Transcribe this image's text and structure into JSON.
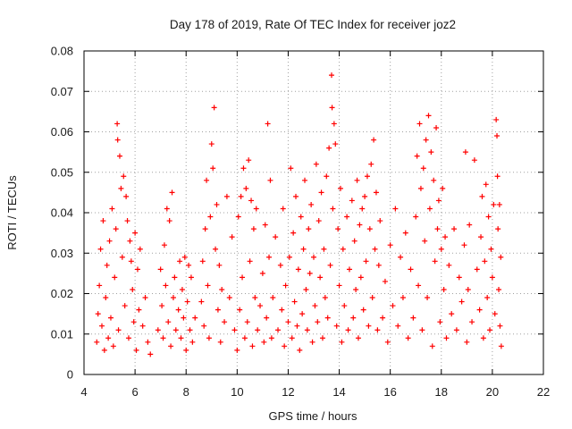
{
  "chart_data": {
    "type": "scatter",
    "title": "Day 178 of 2019, Rate Of TEC Index for receiver joz2",
    "xlabel": "GPS time / hours",
    "ylabel": "ROTI / TECUs",
    "xlim": [
      4,
      22
    ],
    "ylim": [
      0,
      0.08
    ],
    "xticks": [
      4,
      6,
      8,
      10,
      12,
      14,
      16,
      18,
      20,
      22
    ],
    "yticks": [
      0,
      0.01,
      0.02,
      0.03,
      0.04,
      0.05,
      0.06,
      0.07,
      0.08
    ],
    "xtick_labels": [
      "4",
      "6",
      "8",
      "10",
      "12",
      "14",
      "16",
      "18",
      "20",
      "22"
    ],
    "ytick_labels": [
      "0",
      "0.01",
      "0.02",
      "0.03",
      "0.04",
      "0.05",
      "0.06",
      "0.07",
      "0.08"
    ],
    "grid": true,
    "marker": "+",
    "color": "#ff0000",
    "series": [
      {
        "name": "ROTI",
        "points": [
          [
            4.5,
            0.008
          ],
          [
            4.55,
            0.015
          ],
          [
            4.6,
            0.022
          ],
          [
            4.65,
            0.031
          ],
          [
            4.7,
            0.012
          ],
          [
            4.75,
            0.038
          ],
          [
            4.8,
            0.006
          ],
          [
            4.85,
            0.019
          ],
          [
            4.9,
            0.027
          ],
          [
            4.95,
            0.009
          ],
          [
            5.0,
            0.033
          ],
          [
            5.05,
            0.014
          ],
          [
            5.1,
            0.041
          ],
          [
            5.15,
            0.007
          ],
          [
            5.2,
            0.024
          ],
          [
            5.25,
            0.036
          ],
          [
            5.3,
            0.062
          ],
          [
            5.32,
            0.058
          ],
          [
            5.35,
            0.011
          ],
          [
            5.4,
            0.054
          ],
          [
            5.45,
            0.046
          ],
          [
            5.5,
            0.029
          ],
          [
            5.55,
            0.049
          ],
          [
            5.6,
            0.017
          ],
          [
            5.65,
            0.044
          ],
          [
            5.7,
            0.038
          ],
          [
            5.75,
            0.009
          ],
          [
            5.8,
            0.033
          ],
          [
            5.85,
            0.028
          ],
          [
            5.9,
            0.021
          ],
          [
            5.95,
            0.013
          ],
          [
            6.0,
            0.035
          ],
          [
            6.05,
            0.006
          ],
          [
            6.1,
            0.026
          ],
          [
            6.15,
            0.016
          ],
          [
            6.2,
            0.031
          ],
          [
            6.3,
            0.012
          ],
          [
            6.4,
            0.019
          ],
          [
            6.5,
            0.008
          ],
          [
            6.6,
            0.005
          ],
          [
            6.9,
            0.011
          ],
          [
            7.0,
            0.026
          ],
          [
            7.05,
            0.017
          ],
          [
            7.1,
            0.009
          ],
          [
            7.15,
            0.032
          ],
          [
            7.2,
            0.022
          ],
          [
            7.25,
            0.041
          ],
          [
            7.3,
            0.013
          ],
          [
            7.35,
            0.038
          ],
          [
            7.4,
            0.007
          ],
          [
            7.45,
            0.045
          ],
          [
            7.5,
            0.019
          ],
          [
            7.55,
            0.024
          ],
          [
            7.6,
            0.011
          ],
          [
            7.7,
            0.016
          ],
          [
            7.75,
            0.028
          ],
          [
            7.8,
            0.009
          ],
          [
            7.85,
            0.021
          ],
          [
            7.9,
            0.014
          ],
          [
            7.95,
            0.029
          ],
          [
            8.0,
            0.006
          ],
          [
            8.05,
            0.018
          ],
          [
            8.1,
            0.027
          ],
          [
            8.15,
            0.011
          ],
          [
            8.2,
            0.024
          ],
          [
            8.25,
            0.008
          ],
          [
            8.35,
            0.014
          ],
          [
            8.6,
            0.018
          ],
          [
            8.65,
            0.028
          ],
          [
            8.7,
            0.012
          ],
          [
            8.75,
            0.036
          ],
          [
            8.8,
            0.048
          ],
          [
            8.85,
            0.022
          ],
          [
            8.9,
            0.009
          ],
          [
            8.95,
            0.039
          ],
          [
            9.0,
            0.057
          ],
          [
            9.05,
            0.051
          ],
          [
            9.1,
            0.066
          ],
          [
            9.15,
            0.031
          ],
          [
            9.2,
            0.042
          ],
          [
            9.25,
            0.016
          ],
          [
            9.3,
            0.027
          ],
          [
            9.35,
            0.008
          ],
          [
            9.4,
            0.021
          ],
          [
            9.5,
            0.013
          ],
          [
            9.6,
            0.044
          ],
          [
            9.7,
            0.019
          ],
          [
            9.8,
            0.034
          ],
          [
            9.9,
            0.011
          ],
          [
            10.0,
            0.006
          ],
          [
            10.05,
            0.039
          ],
          [
            10.1,
            0.016
          ],
          [
            10.15,
            0.044
          ],
          [
            10.2,
            0.024
          ],
          [
            10.25,
            0.051
          ],
          [
            10.3,
            0.009
          ],
          [
            10.35,
            0.046
          ],
          [
            10.4,
            0.013
          ],
          [
            10.45,
            0.053
          ],
          [
            10.5,
            0.028
          ],
          [
            10.55,
            0.043
          ],
          [
            10.6,
            0.007
          ],
          [
            10.65,
            0.036
          ],
          [
            10.7,
            0.019
          ],
          [
            10.75,
            0.041
          ],
          [
            10.8,
            0.011
          ],
          [
            10.9,
            0.017
          ],
          [
            11.0,
            0.025
          ],
          [
            11.05,
            0.008
          ],
          [
            11.1,
            0.037
          ],
          [
            11.15,
            0.014
          ],
          [
            11.2,
            0.062
          ],
          [
            11.25,
            0.029
          ],
          [
            11.3,
            0.048
          ],
          [
            11.35,
            0.009
          ],
          [
            11.4,
            0.019
          ],
          [
            11.5,
            0.034
          ],
          [
            11.6,
            0.011
          ],
          [
            11.7,
            0.027
          ],
          [
            11.75,
            0.016
          ],
          [
            11.8,
            0.041
          ],
          [
            11.85,
            0.007
          ],
          [
            11.9,
            0.022
          ],
          [
            12.0,
            0.013
          ],
          [
            12.05,
            0.029
          ],
          [
            12.1,
            0.051
          ],
          [
            12.15,
            0.009
          ],
          [
            12.2,
            0.035
          ],
          [
            12.25,
            0.018
          ],
          [
            12.3,
            0.044
          ],
          [
            12.35,
            0.012
          ],
          [
            12.4,
            0.026
          ],
          [
            12.45,
            0.006
          ],
          [
            12.5,
            0.039
          ],
          [
            12.55,
            0.015
          ],
          [
            12.6,
            0.031
          ],
          [
            12.65,
            0.048
          ],
          [
            12.7,
            0.021
          ],
          [
            12.75,
            0.011
          ],
          [
            12.8,
            0.036
          ],
          [
            12.85,
            0.025
          ],
          [
            12.9,
            0.042
          ],
          [
            12.95,
            0.008
          ],
          [
            13.0,
            0.029
          ],
          [
            13.05,
            0.017
          ],
          [
            13.1,
            0.052
          ],
          [
            13.15,
            0.013
          ],
          [
            13.2,
            0.038
          ],
          [
            13.25,
            0.024
          ],
          [
            13.3,
            0.045
          ],
          [
            13.35,
            0.009
          ],
          [
            13.4,
            0.031
          ],
          [
            13.45,
            0.019
          ],
          [
            13.5,
            0.049
          ],
          [
            13.55,
            0.014
          ],
          [
            13.6,
            0.056
          ],
          [
            13.65,
            0.027
          ],
          [
            13.7,
            0.074
          ],
          [
            13.72,
            0.066
          ],
          [
            13.75,
            0.041
          ],
          [
            13.8,
            0.062
          ],
          [
            13.85,
            0.057
          ],
          [
            13.9,
            0.012
          ],
          [
            13.95,
            0.036
          ],
          [
            14.0,
            0.022
          ],
          [
            14.05,
            0.046
          ],
          [
            14.1,
            0.008
          ],
          [
            14.15,
            0.031
          ],
          [
            14.2,
            0.017
          ],
          [
            14.3,
            0.039
          ],
          [
            14.35,
            0.011
          ],
          [
            14.4,
            0.026
          ],
          [
            14.5,
            0.043
          ],
          [
            14.55,
            0.014
          ],
          [
            14.6,
            0.033
          ],
          [
            14.65,
            0.021
          ],
          [
            14.7,
            0.048
          ],
          [
            14.75,
            0.009
          ],
          [
            14.8,
            0.037
          ],
          [
            14.85,
            0.024
          ],
          [
            14.9,
            0.041
          ],
          [
            14.95,
            0.016
          ],
          [
            15.0,
            0.044
          ],
          [
            15.05,
            0.028
          ],
          [
            15.1,
            0.049
          ],
          [
            15.15,
            0.012
          ],
          [
            15.2,
            0.036
          ],
          [
            15.25,
            0.052
          ],
          [
            15.3,
            0.019
          ],
          [
            15.35,
            0.058
          ],
          [
            15.4,
            0.031
          ],
          [
            15.45,
            0.045
          ],
          [
            15.5,
            0.011
          ],
          [
            15.55,
            0.027
          ],
          [
            15.6,
            0.038
          ],
          [
            15.7,
            0.014
          ],
          [
            15.8,
            0.023
          ],
          [
            15.9,
            0.008
          ],
          [
            16.0,
            0.032
          ],
          [
            16.1,
            0.017
          ],
          [
            16.2,
            0.041
          ],
          [
            16.3,
            0.012
          ],
          [
            16.4,
            0.029
          ],
          [
            16.5,
            0.019
          ],
          [
            16.6,
            0.035
          ],
          [
            16.7,
            0.009
          ],
          [
            16.8,
            0.026
          ],
          [
            16.9,
            0.014
          ],
          [
            17.0,
            0.039
          ],
          [
            17.05,
            0.054
          ],
          [
            17.1,
            0.022
          ],
          [
            17.15,
            0.062
          ],
          [
            17.2,
            0.046
          ],
          [
            17.25,
            0.011
          ],
          [
            17.3,
            0.051
          ],
          [
            17.35,
            0.033
          ],
          [
            17.4,
            0.058
          ],
          [
            17.45,
            0.019
          ],
          [
            17.5,
            0.064
          ],
          [
            17.55,
            0.041
          ],
          [
            17.6,
            0.055
          ],
          [
            17.65,
            0.007
          ],
          [
            17.7,
            0.048
          ],
          [
            17.75,
            0.028
          ],
          [
            17.8,
            0.061
          ],
          [
            17.85,
            0.036
          ],
          [
            17.9,
            0.043
          ],
          [
            17.95,
            0.013
          ],
          [
            18.0,
            0.031
          ],
          [
            18.05,
            0.046
          ],
          [
            18.1,
            0.021
          ],
          [
            18.15,
            0.034
          ],
          [
            18.2,
            0.009
          ],
          [
            18.3,
            0.027
          ],
          [
            18.4,
            0.015
          ],
          [
            18.5,
            0.036
          ],
          [
            18.6,
            0.011
          ],
          [
            18.7,
            0.024
          ],
          [
            18.8,
            0.018
          ],
          [
            18.9,
            0.032
          ],
          [
            18.95,
            0.055
          ],
          [
            19.0,
            0.008
          ],
          [
            19.05,
            0.021
          ],
          [
            19.1,
            0.037
          ],
          [
            19.2,
            0.013
          ],
          [
            19.3,
            0.053
          ],
          [
            19.4,
            0.026
          ],
          [
            19.5,
            0.016
          ],
          [
            19.55,
            0.034
          ],
          [
            19.6,
            0.044
          ],
          [
            19.65,
            0.009
          ],
          [
            19.7,
            0.028
          ],
          [
            19.75,
            0.047
          ],
          [
            19.8,
            0.019
          ],
          [
            19.85,
            0.039
          ],
          [
            19.9,
            0.011
          ],
          [
            19.95,
            0.031
          ],
          [
            20.0,
            0.024
          ],
          [
            20.05,
            0.042
          ],
          [
            20.1,
            0.015
          ],
          [
            20.15,
            0.063
          ],
          [
            20.18,
            0.059
          ],
          [
            20.2,
            0.049
          ],
          [
            20.22,
            0.036
          ],
          [
            20.25,
            0.021
          ],
          [
            20.28,
            0.042
          ],
          [
            20.3,
            0.012
          ],
          [
            20.33,
            0.029
          ],
          [
            20.35,
            0.007
          ]
        ]
      }
    ]
  }
}
